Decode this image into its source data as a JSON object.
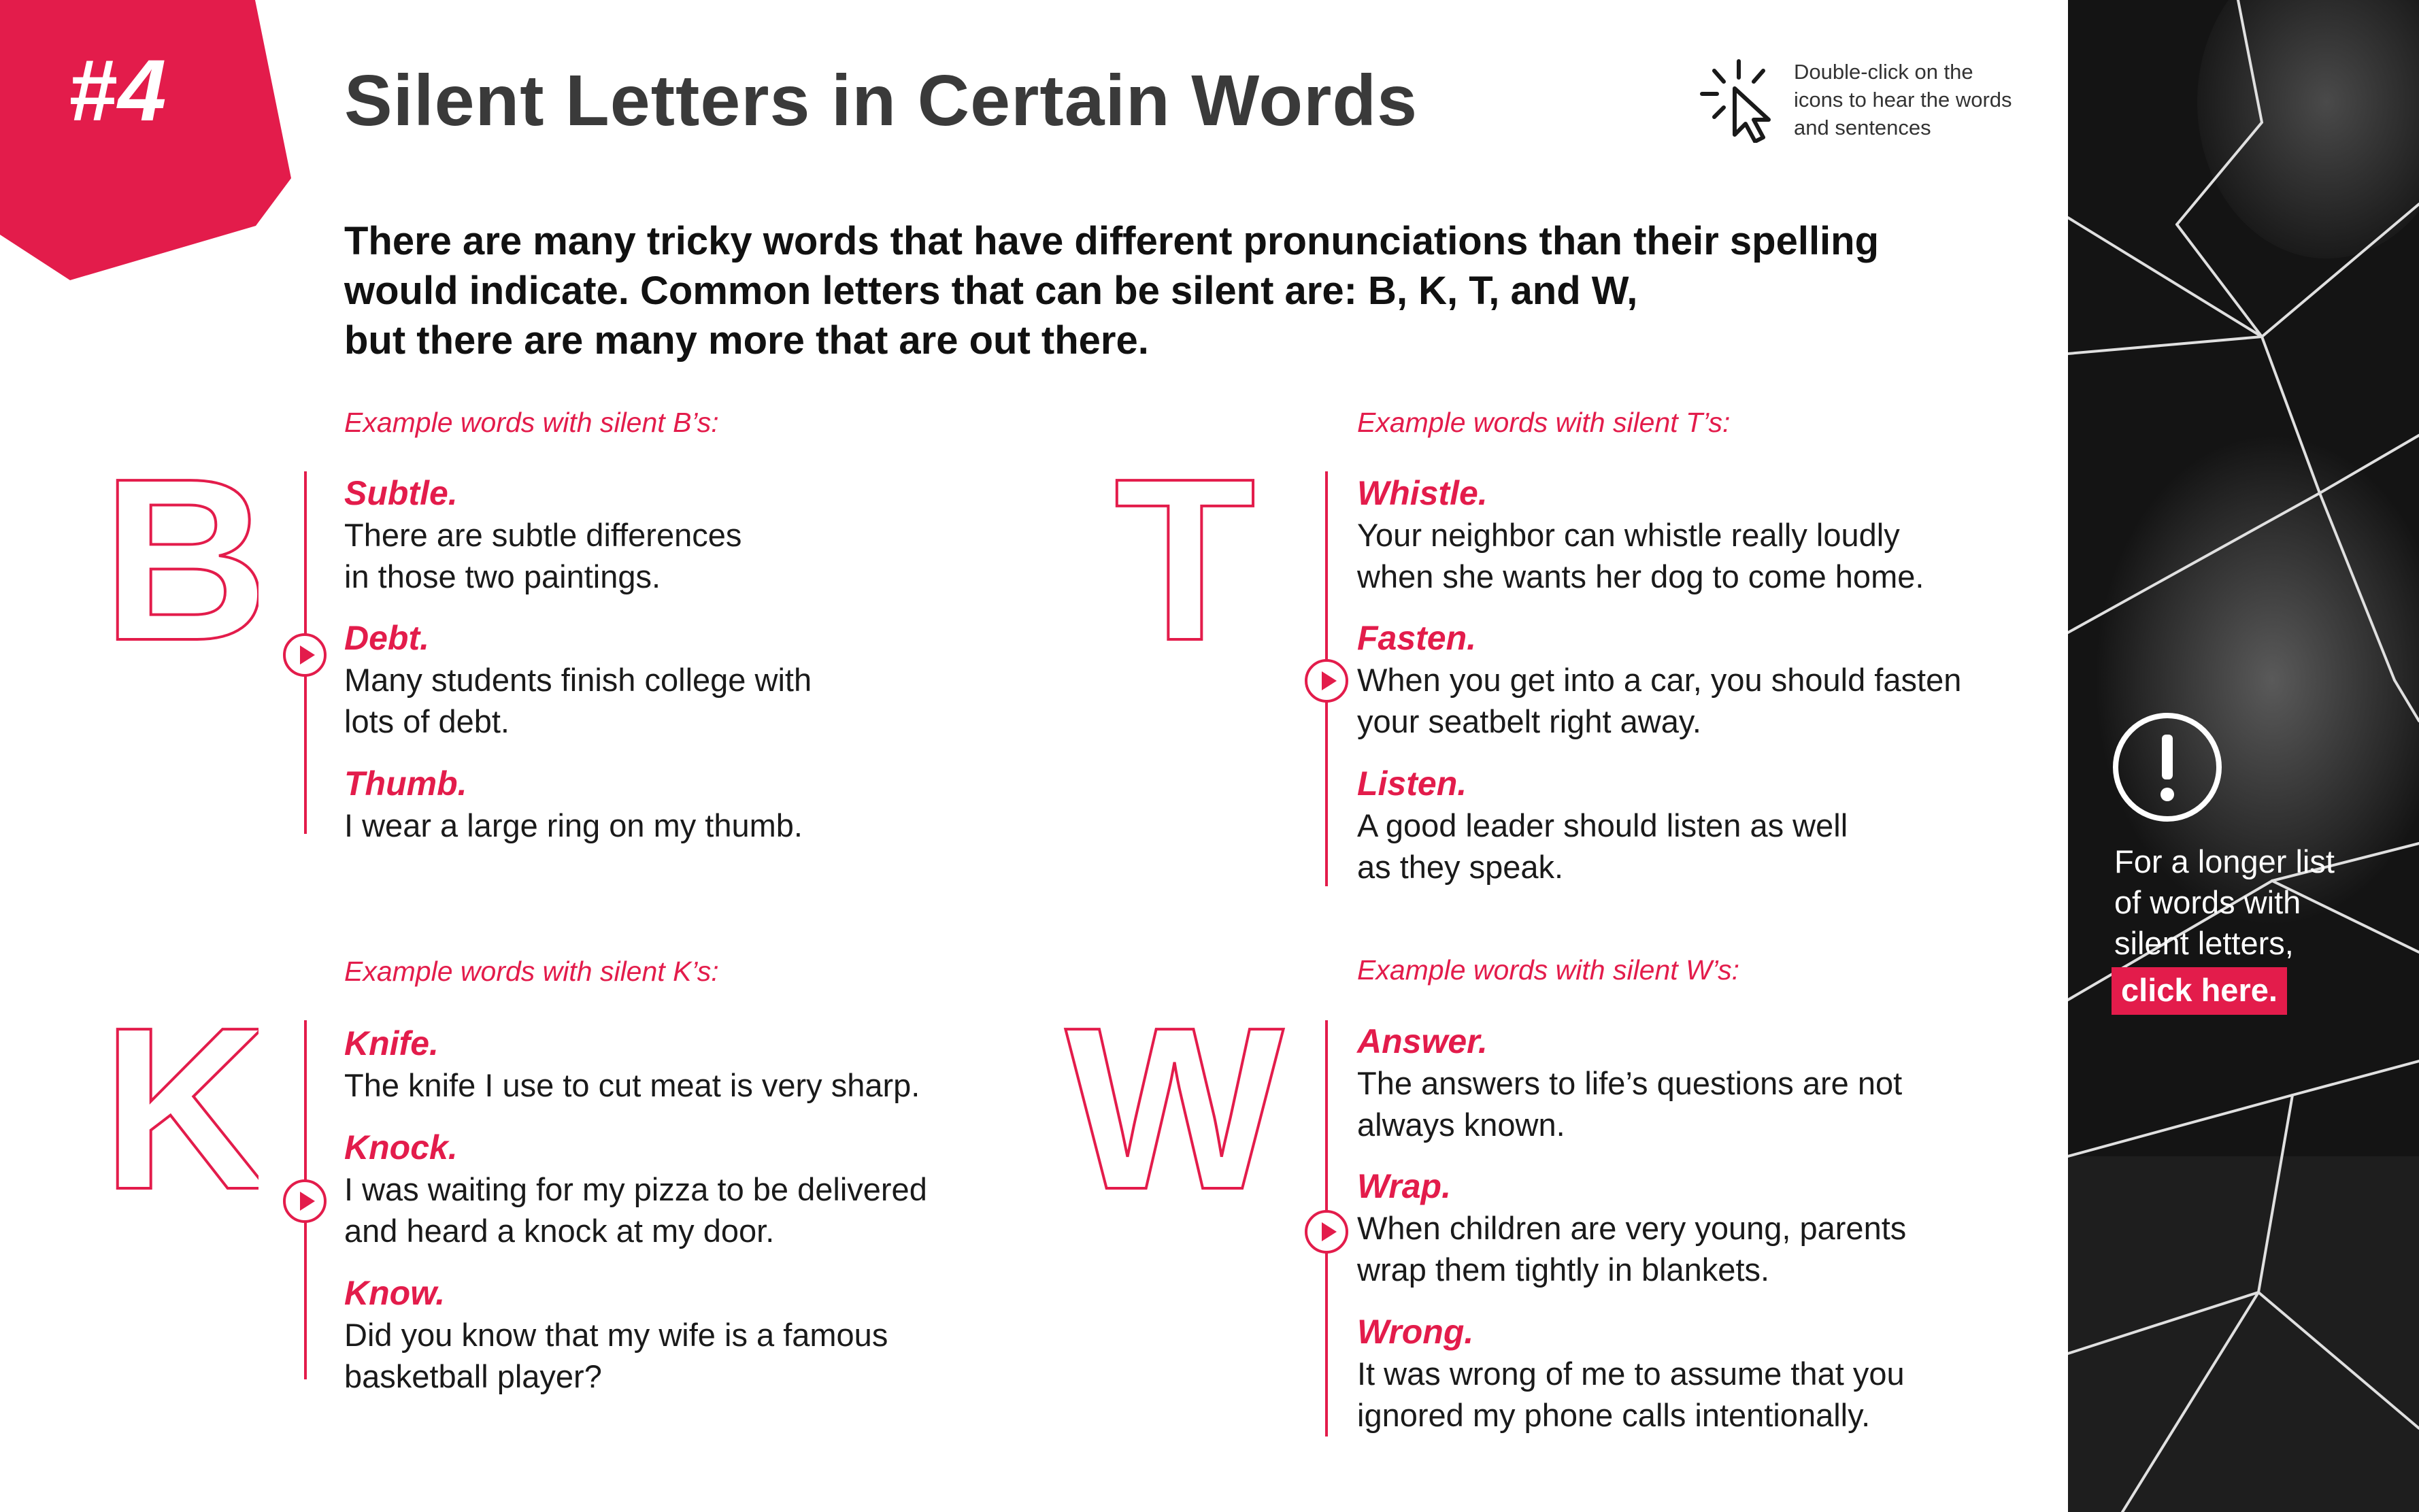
{
  "badge": {
    "label": "#4"
  },
  "title": "Silent Letters in Certain Words",
  "hint": {
    "icon": "click-cursor-icon",
    "lines": [
      "Double-click on the",
      "icons to hear the words",
      "and sentences"
    ]
  },
  "intro": {
    "lines": [
      "There are many tricky words that have different pronunciations than their spelling",
      "would indicate.  Common letters that can be silent are: B, K, T, and W,",
      "but there are many more that are out there."
    ]
  },
  "colors": {
    "accent": "#e31c4b",
    "panel": "#141414",
    "title": "#3a3a3a"
  },
  "sections": [
    {
      "letter": "B",
      "label": "Example words with silent B’s:",
      "entries": [
        {
          "word": "Subtle.",
          "lines": [
            "There are subtle differences",
            "in those two paintings."
          ]
        },
        {
          "word": "Debt.",
          "lines": [
            "Many students finish college with",
            "lots of debt."
          ]
        },
        {
          "word": "Thumb.",
          "lines": [
            "I wear a large ring on my thumb."
          ]
        }
      ]
    },
    {
      "letter": "T",
      "label": "Example words with silent T’s:",
      "entries": [
        {
          "word": "Whistle.",
          "lines": [
            "Your neighbor can whistle really loudly",
            "when she wants her dog to come home."
          ]
        },
        {
          "word": "Fasten.",
          "lines": [
            "When you get into a car, you should fasten",
            "your seatbelt right away."
          ]
        },
        {
          "word": "Listen.",
          "lines": [
            "A good leader should listen as well",
            "as they speak."
          ]
        }
      ]
    },
    {
      "letter": "K",
      "label": "Example words with silent K’s:",
      "entries": [
        {
          "word": "Knife.",
          "lines": [
            "The knife I use to cut meat is very sharp."
          ]
        },
        {
          "word": "Knock.",
          "lines": [
            "I was waiting for my pizza to be delivered",
            "and heard a knock at my door."
          ]
        },
        {
          "word": "Know.",
          "lines": [
            "Did you know that my wife is a famous",
            "basketball player?"
          ]
        }
      ]
    },
    {
      "letter": "W",
      "label": "Example words with silent W’s:",
      "entries": [
        {
          "word": "Answer.",
          "lines": [
            "The answers to life’s questions are not",
            "always known."
          ]
        },
        {
          "word": "Wrap.",
          "lines": [
            "When children are very young, parents",
            "wrap them tightly in blankets."
          ]
        },
        {
          "word": "Wrong.",
          "lines": [
            " It was wrong of me to assume that you",
            "ignored my phone calls intentionally."
          ]
        }
      ]
    }
  ],
  "side": {
    "lines": [
      "For a longer list",
      "of words with",
      "silent letters,"
    ],
    "link": "click here."
  }
}
